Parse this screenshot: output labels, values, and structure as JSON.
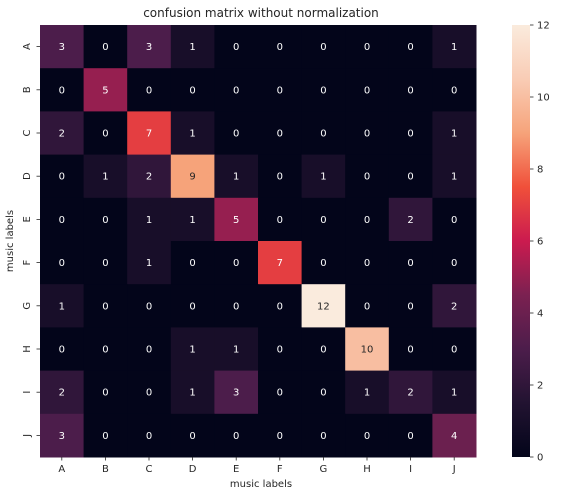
{
  "chart_data": {
    "type": "heatmap",
    "title": "confusion matrix without normalization",
    "xlabel": "music labels",
    "ylabel": "music labels",
    "x_categories": [
      "A",
      "B",
      "C",
      "D",
      "E",
      "F",
      "G",
      "H",
      "I",
      "J"
    ],
    "y_categories": [
      "A",
      "B",
      "C",
      "D",
      "E",
      "F",
      "G",
      "H",
      "I",
      "J"
    ],
    "values": [
      [
        3,
        0,
        3,
        1,
        0,
        0,
        0,
        0,
        0,
        1
      ],
      [
        0,
        5,
        0,
        0,
        0,
        0,
        0,
        0,
        0,
        0
      ],
      [
        2,
        0,
        7,
        1,
        0,
        0,
        0,
        0,
        0,
        1
      ],
      [
        0,
        1,
        2,
        9,
        1,
        0,
        1,
        0,
        0,
        1
      ],
      [
        0,
        0,
        1,
        1,
        5,
        0,
        0,
        0,
        2,
        0
      ],
      [
        0,
        0,
        1,
        0,
        0,
        7,
        0,
        0,
        0,
        0
      ],
      [
        1,
        0,
        0,
        0,
        0,
        0,
        12,
        0,
        0,
        2
      ],
      [
        0,
        0,
        0,
        1,
        1,
        0,
        0,
        10,
        0,
        0
      ],
      [
        2,
        0,
        0,
        1,
        3,
        0,
        0,
        1,
        2,
        1
      ],
      [
        3,
        0,
        0,
        0,
        0,
        0,
        0,
        0,
        0,
        4
      ]
    ],
    "colorbar": {
      "min": 0,
      "max": 12,
      "ticks": [
        0,
        2,
        4,
        6,
        8,
        10,
        12
      ],
      "colormap": "rocket"
    }
  }
}
